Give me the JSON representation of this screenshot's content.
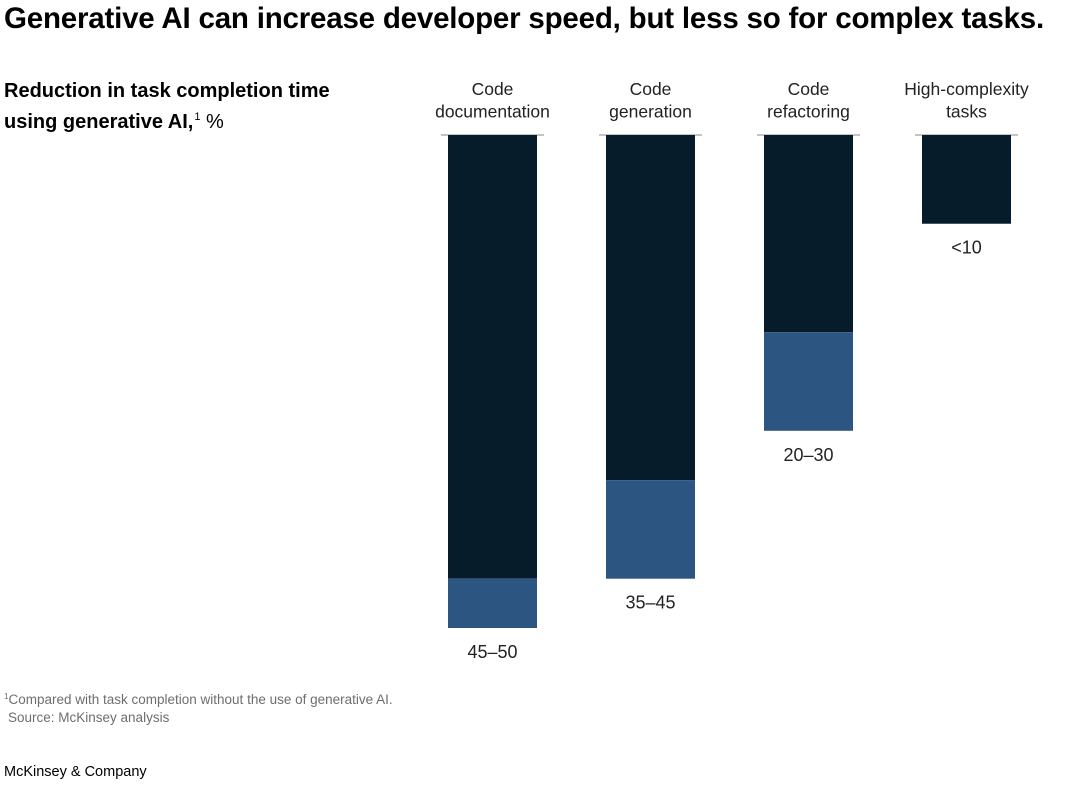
{
  "title": "Generative AI can increase developer speed, but less so for complex tasks.",
  "subtitle": {
    "text": "Reduction in task completion time using generative AI,",
    "footnote_marker": "1",
    "unit": "%"
  },
  "footnote": {
    "marker": "1",
    "text": "Compared with task completion without the use of generative AI.",
    "source": "Source: McKinsey analysis"
  },
  "brand": "McKinsey & Company",
  "colors": {
    "dark_bar": "#061c2b",
    "range_bar": "#2c5582",
    "baseline": "#888888"
  },
  "chart_data": {
    "type": "bar",
    "orientation": "vertical-downward",
    "stacked": true,
    "categories": [
      "Code documentation",
      "Code generation",
      "Code refactoring",
      "High-complexity tasks"
    ],
    "category_lines": [
      [
        "Code",
        "documentation"
      ],
      [
        "Code",
        "generation"
      ],
      [
        "Code",
        "refactoring"
      ],
      [
        "High-complexity",
        "tasks"
      ]
    ],
    "series": [
      {
        "name": "",
        "values": [
          45,
          35,
          20,
          9
        ]
      },
      {
        "name": "",
        "values": [
          5,
          10,
          10,
          0
        ]
      }
    ],
    "value_labels": [
      "45–50",
      "35–45",
      "20–30",
      "<10"
    ],
    "ylim": [
      0,
      50
    ],
    "grid": false,
    "legend": "none"
  }
}
